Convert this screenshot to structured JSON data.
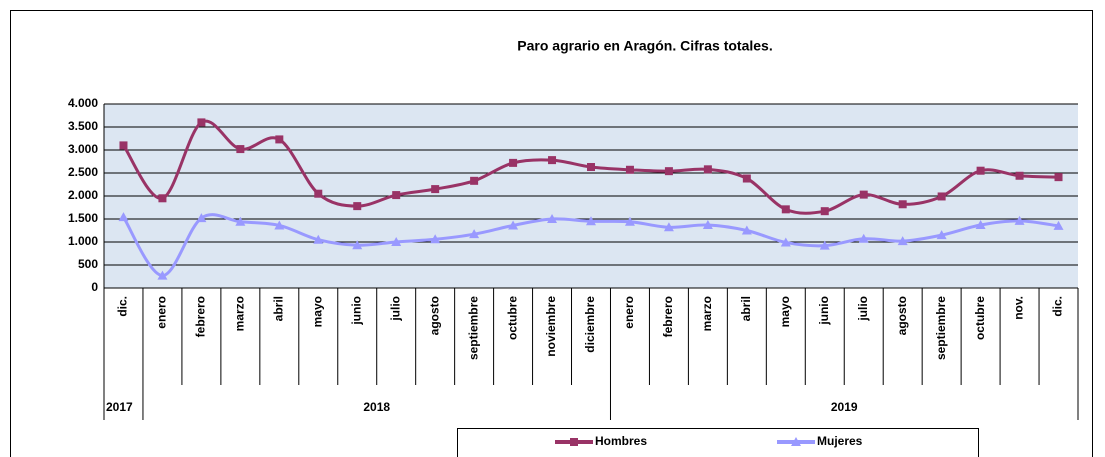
{
  "chart_data": {
    "type": "line",
    "title": "Paro agrario en Aragón. Cifras totales.",
    "categories": [
      "dic.",
      "enero",
      "febrero",
      "marzo",
      "abril",
      "mayo",
      "junio",
      "julio",
      "agosto",
      "septiembre",
      "octubre",
      "noviembre",
      "diciembre",
      "enero",
      "febrero",
      "marzo",
      "abril",
      "mayo",
      "junio",
      "julio",
      "agosto",
      "septiembre",
      "octubre",
      "nov.",
      "dic."
    ],
    "groups": [
      {
        "label": "2017",
        "span": 1
      },
      {
        "label": "2018",
        "span": 12
      },
      {
        "label": "2019",
        "span": 12
      }
    ],
    "series": [
      {
        "name": "Hombres",
        "color": "#993366",
        "marker": "square",
        "values": [
          3100,
          1950,
          3600,
          3020,
          3230,
          2050,
          1780,
          2020,
          2150,
          2330,
          2720,
          2780,
          2630,
          2570,
          2540,
          2580,
          2380,
          1710,
          1670,
          2030,
          1820,
          1990,
          2550,
          2440,
          2410
        ]
      },
      {
        "name": "Mujeres",
        "color": "#9999ff",
        "marker": "triangle",
        "values": [
          1540,
          270,
          1520,
          1440,
          1360,
          1050,
          930,
          1000,
          1060,
          1170,
          1360,
          1500,
          1450,
          1440,
          1320,
          1370,
          1250,
          990,
          920,
          1070,
          1020,
          1150,
          1370,
          1460,
          1350
        ]
      }
    ],
    "ylim": [
      0,
      4000
    ],
    "yticks": [
      0,
      500,
      {
        "value": 1000,
        "label": "1.000"
      },
      {
        "value": 1500,
        "label": "1.500"
      },
      {
        "value": 2000,
        "label": "2.000"
      },
      {
        "value": 2500,
        "label": "2.500"
      },
      {
        "value": 3000,
        "label": "3.000"
      },
      {
        "value": 3500,
        "label": "3.500"
      },
      {
        "value": 4000,
        "label": "4.000"
      }
    ],
    "grid": true,
    "smooth": true,
    "legend": "bottom"
  }
}
